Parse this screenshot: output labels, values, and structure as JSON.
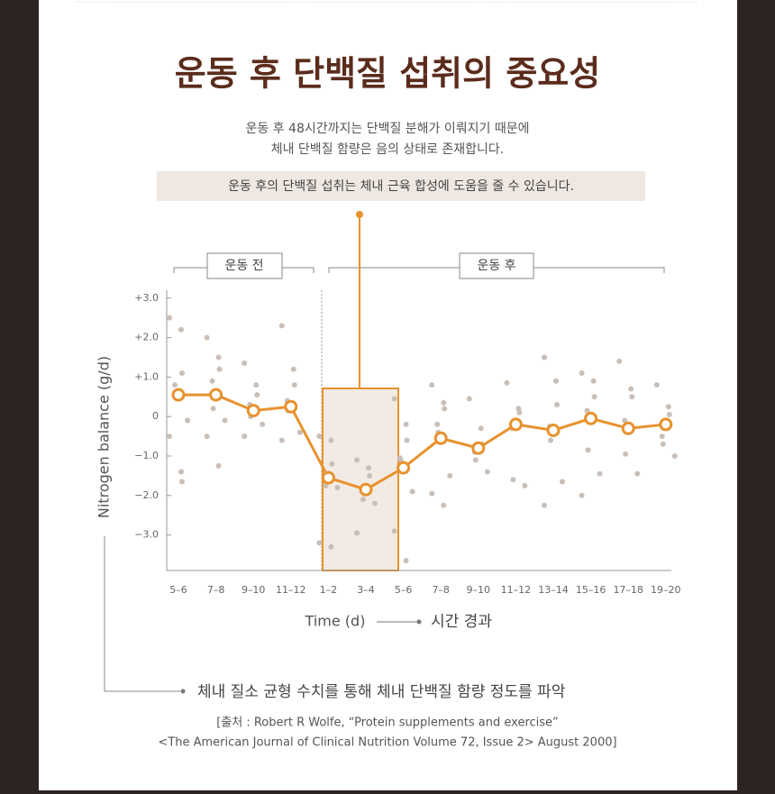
{
  "header": {
    "title": "운동 후 단백질 섭취의 중요성",
    "lines": [
      "운동 후 48시간까지는 단백질 분해가 이뤄지기 때문에",
      "체내 단백질 함량은 음의 상태로 존재합니다."
    ],
    "highlight": "운동 후의 단백질 섭취는 체내 근육 합성에 도움을 줄 수 있습니다."
  },
  "chart_data": {
    "type": "line",
    "ylabel": "Nitrogen balance (g/d)",
    "xlabel": "Time (d)",
    "xlabel_note": "시간 경과",
    "phases": [
      "운동 전",
      "운동 후"
    ],
    "categories": [
      "5–6",
      "7–8",
      "9–10",
      "11–12",
      "1–2",
      "3–4",
      "5–6",
      "7–8",
      "9–10",
      "11–12",
      "13–14",
      "15–16",
      "17–18",
      "19–20"
    ],
    "series": [
      {
        "color": "#e8922e",
        "values": [
          0.55,
          0.55,
          0.15,
          0.25,
          -1.55,
          -1.85,
          -1.3,
          -0.55,
          -0.8,
          -0.2,
          -0.35,
          -0.05,
          -0.3,
          -0.2
        ]
      }
    ],
    "individual_color": "#c9bfb8",
    "individual": [
      [
        2.5,
        2.2,
        1.1,
        0.8,
        0.6,
        -0.1,
        -0.5,
        -1.4,
        -1.65
      ],
      [
        2.0,
        1.5,
        1.2,
        0.9,
        0.2,
        -0.1,
        -0.5,
        -1.25
      ],
      [
        1.35,
        0.8,
        0.55,
        0.3,
        0.0,
        -0.2,
        -0.5
      ],
      [
        2.3,
        1.2,
        0.8,
        0.4,
        0.15,
        -0.4,
        -0.6
      ],
      [
        -0.5,
        -0.6,
        -1.2,
        -1.5,
        -1.75,
        -1.8,
        -3.2,
        -3.3
      ],
      [
        -1.1,
        -1.3,
        -1.5,
        -1.9,
        -2.1,
        -2.2,
        -2.95
      ],
      [
        0.45,
        -0.2,
        -0.6,
        -1.05,
        -1.1,
        -1.9,
        -2.9,
        -3.65
      ],
      [
        0.8,
        0.35,
        0.2,
        -0.2,
        -0.4,
        -1.5,
        -1.95,
        -2.25
      ],
      [
        0.45,
        -0.3,
        -0.7,
        -0.9,
        -1.1,
        -1.4
      ],
      [
        0.85,
        0.2,
        0.1,
        -0.3,
        -1.6,
        -1.75
      ],
      [
        1.5,
        0.9,
        0.3,
        -0.25,
        -0.6,
        -1.65,
        -2.25
      ],
      [
        1.1,
        0.9,
        0.5,
        0.15,
        -0.85,
        -1.45,
        -2.0
      ],
      [
        1.4,
        0.7,
        0.5,
        -0.1,
        -0.95,
        -1.45
      ],
      [
        0.8,
        0.25,
        0.05,
        -0.5,
        -0.7,
        -1.0
      ]
    ],
    "ylim": [
      -3.9,
      3.2
    ],
    "yticks": [
      {
        "value": 3,
        "label": "+3.0"
      },
      {
        "value": 2,
        "label": "+2.0"
      },
      {
        "value": 1,
        "label": "+1.0"
      },
      0,
      {
        "value": -1,
        "label": "−1.0"
      },
      {
        "value": -2,
        "label": "−2.0"
      },
      {
        "value": -3,
        "label": "−3.0"
      }
    ]
  },
  "footer": {
    "note": "체내 질소 균형 수치를 통해 체내 단백질 함량 정도를 파악",
    "source": [
      "[출처 : Robert R Wolfe, “Protein supplements and exercise”",
      "<The American Journal of Clinical Nutrition Volume 72, Issue 2> August 2000]"
    ]
  }
}
